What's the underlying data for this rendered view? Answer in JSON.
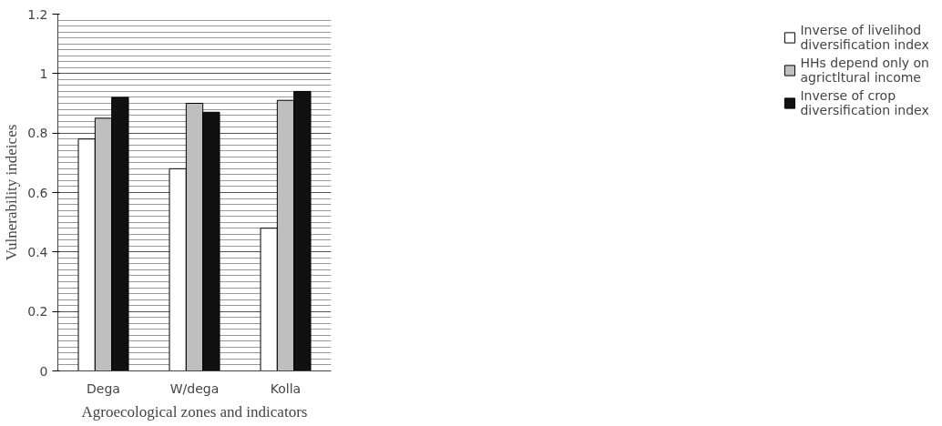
{
  "chart_data": {
    "type": "bar",
    "xlabel": "Agroecological zones and indicators",
    "ylabel": "Vulnerability indeices",
    "categories": [
      "Dega",
      "W/dega",
      "Kolla"
    ],
    "series": [
      {
        "name": "Inverse of livelihod diversification index",
        "color": "#ffffff",
        "values": [
          0.78,
          0.68,
          0.48
        ]
      },
      {
        "name": "HHs depend only on agrictltural income",
        "color": "#bfbfbf",
        "values": [
          0.85,
          0.9,
          0.91
        ]
      },
      {
        "name": "Inverse of crop diversification index",
        "color": "#111111",
        "values": [
          0.92,
          0.87,
          0.94
        ]
      }
    ],
    "ylim": [
      0,
      1.2
    ],
    "yticks": [
      0,
      0.2,
      0.4,
      0.6,
      0.8,
      1,
      1.2
    ],
    "grid": "y",
    "legend": "right"
  }
}
